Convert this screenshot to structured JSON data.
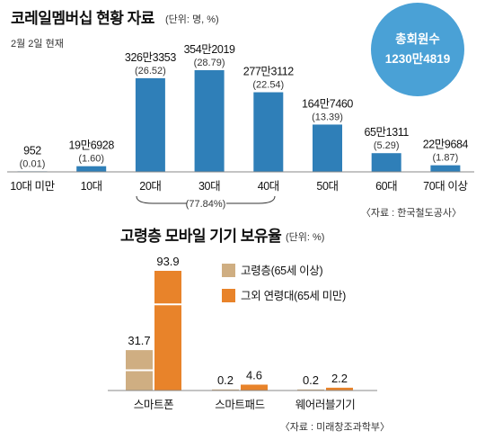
{
  "chart_data": [
    {
      "type": "bar",
      "title": "코레일멤버십 현황 자료",
      "unit_note": "(단위: 명, %)",
      "date_note": "2월 2일 현재",
      "total": {
        "label": "총회원수",
        "value": "1230만4819"
      },
      "categories": [
        "10대 미만",
        "10대",
        "20대",
        "30대",
        "40대",
        "50대",
        "60대",
        "70대 이상"
      ],
      "value_labels": [
        "952",
        "19만6928",
        "326만3353",
        "354만2019",
        "277만3112",
        "164만7460",
        "65만1311",
        "22만9684"
      ],
      "values": [
        952,
        196928,
        3263353,
        3542019,
        2773112,
        1647460,
        651311,
        229684
      ],
      "percent_labels": [
        "(0.01)",
        "(1.60)",
        "(26.52)",
        "(28.79)",
        "(22.54)",
        "(13.39)",
        "(5.29)",
        "(1.87)"
      ],
      "bracket_label": "(77.84%)",
      "source": "〈자료 : 한국철도공사〉",
      "color": "#2f7fb8"
    },
    {
      "type": "bar",
      "title": "고령층 모바일 기기 보유율",
      "unit_note": "(단위: %)",
      "categories": [
        "스마트폰",
        "스마트패드",
        "웨어러블기기"
      ],
      "series": [
        {
          "name": "고령층(65세 이상)",
          "values": [
            31.7,
            0.2,
            0.2
          ],
          "labels": [
            "31.7",
            "0.2",
            "0.2"
          ],
          "color": "#cfae82"
        },
        {
          "name": "그외 연령대(65세 미만)",
          "values": [
            93.9,
            4.6,
            2.2
          ],
          "labels": [
            "93.9",
            "4.6",
            "2.2"
          ],
          "color": "#e8832a"
        }
      ],
      "source": "〈자료 : 미래창조과학부〉"
    }
  ]
}
